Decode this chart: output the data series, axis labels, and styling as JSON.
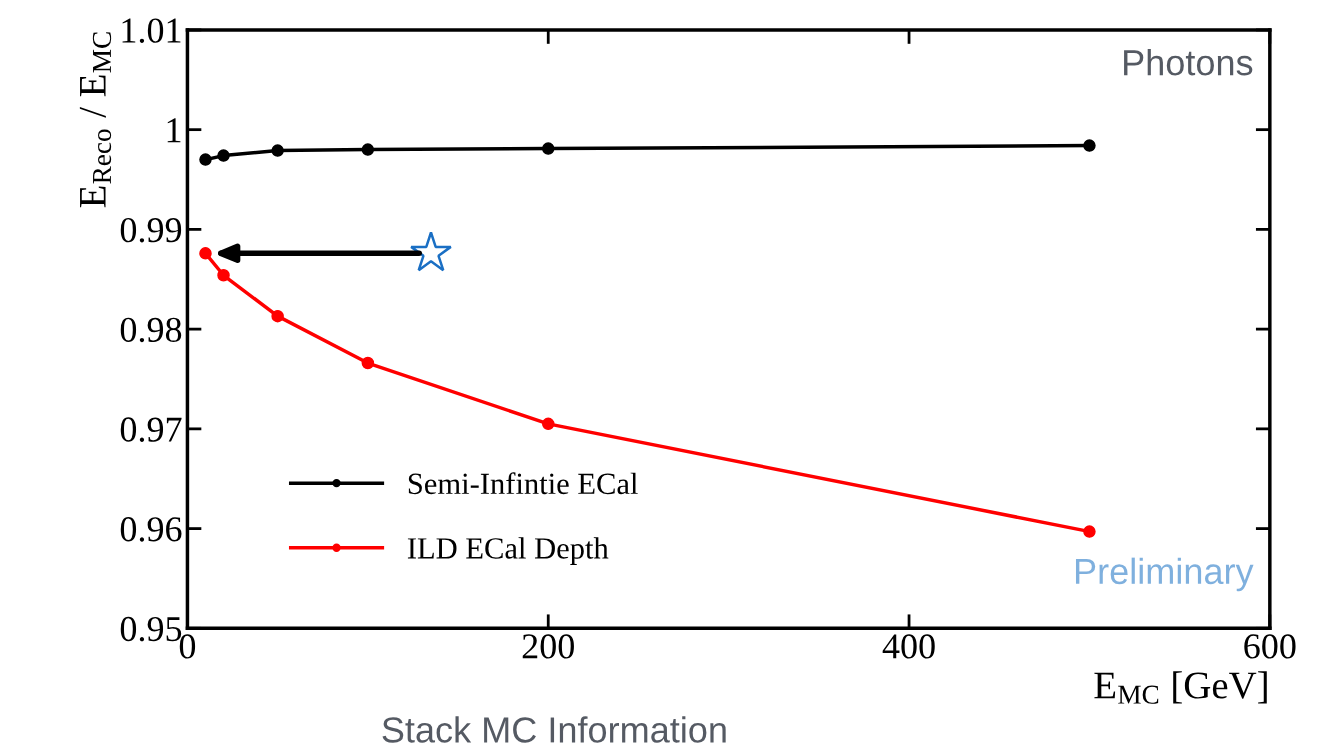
{
  "chart_data": {
    "type": "line",
    "xlabel": "E$_{MC}$ [GeV]",
    "ylabel": "E$_{Reco}$ / E$_{MC}$",
    "x": [
      10,
      20,
      50,
      100,
      200,
      500
    ],
    "series": [
      {
        "name": "Semi-Infintie ECal",
        "color": "#000000",
        "values": [
          0.997,
          0.9974,
          0.9979,
          0.998,
          0.9981,
          0.9984
        ]
      },
      {
        "name": "ILD ECal Depth",
        "color": "#ff0000",
        "values": [
          0.9876,
          0.9854,
          0.9813,
          0.9766,
          0.9705,
          0.9597
        ]
      }
    ],
    "xlim": [
      0,
      600
    ],
    "xticks": [
      0,
      200,
      400,
      600
    ],
    "ylim": [
      0.95,
      1.01
    ],
    "yticks": [
      0.95,
      0.96,
      0.97,
      0.98,
      0.99,
      1,
      1.01
    ],
    "annotations": [
      "Photons",
      "Preliminary",
      "Stack MC Information"
    ],
    "legend": "bottom left",
    "marker": "circle",
    "line_style": "solid",
    "grid": false
  }
}
